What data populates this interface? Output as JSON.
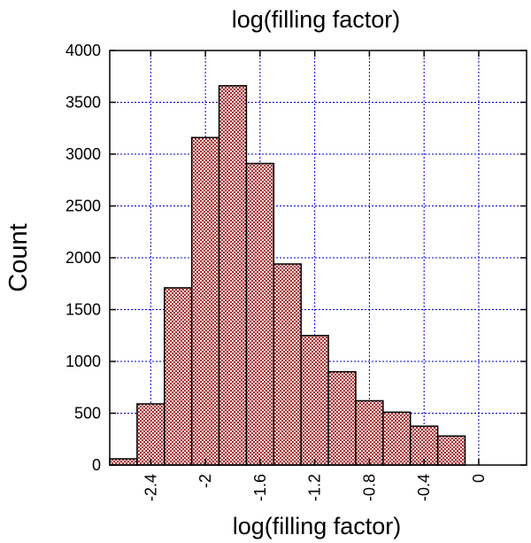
{
  "chart_data": {
    "type": "bar",
    "title": "log(filling factor)",
    "xlabel": "log(filling factor)",
    "ylabel": "Count",
    "xlim": [
      -2.7,
      0.35
    ],
    "ylim": [
      0,
      4000
    ],
    "x_ticks": [
      -2.4,
      -2,
      -1.6,
      -1.2,
      -0.8,
      -0.4,
      0
    ],
    "x_tick_labels": [
      "-2.4",
      "-2",
      "-1.6",
      "-1.2",
      "-0.8",
      "-0.4",
      "0"
    ],
    "y_ticks": [
      0,
      500,
      1000,
      1500,
      2000,
      2500,
      3000,
      3500,
      4000
    ],
    "y_tick_labels": [
      "0",
      "500",
      "1000",
      "1500",
      "2000",
      "2500",
      "3000",
      "3500",
      "4000"
    ],
    "bin_edges": [
      -2.7,
      -2.5,
      -2.3,
      -2.1,
      -1.9,
      -1.7,
      -1.5,
      -1.3,
      -1.1,
      -0.9,
      -0.7,
      -0.5,
      -0.3,
      -0.1,
      0.1
    ],
    "values": [
      60,
      590,
      1710,
      3160,
      3660,
      2910,
      1940,
      1250,
      900,
      620,
      510,
      375,
      280,
      0
    ],
    "grid": true,
    "bar_color": "#b05050",
    "grid_color": "#0000cc"
  }
}
